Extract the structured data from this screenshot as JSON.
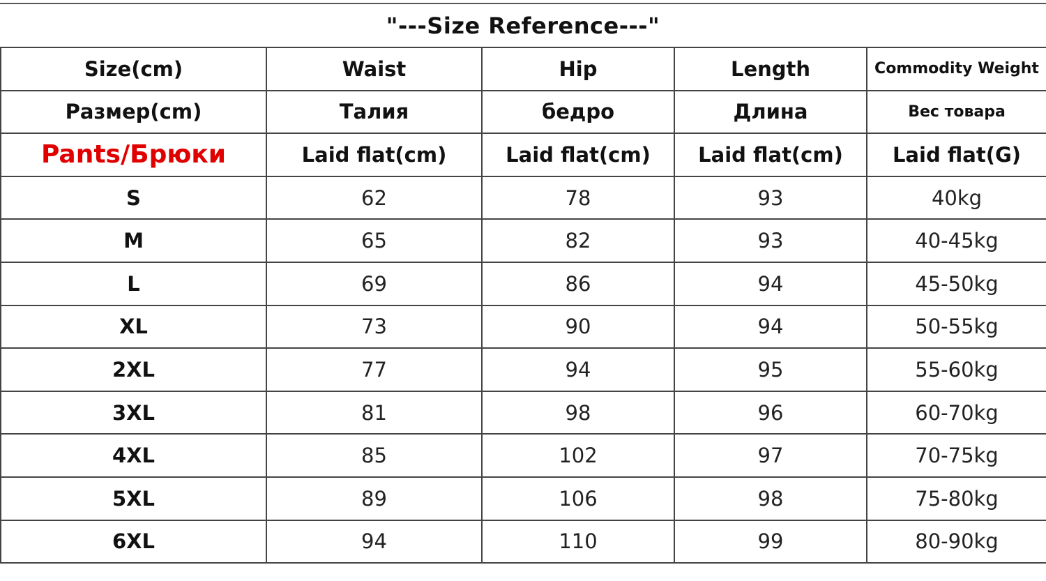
{
  "title": "\"---Size Reference---\"",
  "header_rows": [
    [
      "Size(cm)",
      "Waist",
      "Hip",
      "Length",
      "Commodity Weight"
    ],
    [
      "Размер(cm)",
      "Талия",
      "бедро",
      "Длина",
      "Вес товара"
    ],
    [
      "Pants/Брюки",
      "Laid flat(cm)",
      "Laid flat(cm)",
      "Laid flat(cm)",
      "Laid flat(G)"
    ]
  ],
  "rows": [
    [
      "S",
      "62",
      "78",
      "93",
      "40kg"
    ],
    [
      "M",
      "65",
      "82",
      "93",
      "40-45kg"
    ],
    [
      "L",
      "69",
      "86",
      "94",
      "45-50kg"
    ],
    [
      "XL",
      "73",
      "90",
      "94",
      "50-55kg"
    ],
    [
      "2XL",
      "77",
      "94",
      "95",
      "55-60kg"
    ],
    [
      "3XL",
      "81",
      "98",
      "96",
      "60-70kg"
    ],
    [
      "4XL",
      "85",
      "102",
      "97",
      "70-75kg"
    ],
    [
      "5XL",
      "89",
      "106",
      "98",
      "75-80kg"
    ],
    [
      "6XL",
      "94",
      "110",
      "99",
      "80-90kg"
    ]
  ],
  "colors": {
    "accent_red": "#e00000",
    "border": "#444444"
  }
}
